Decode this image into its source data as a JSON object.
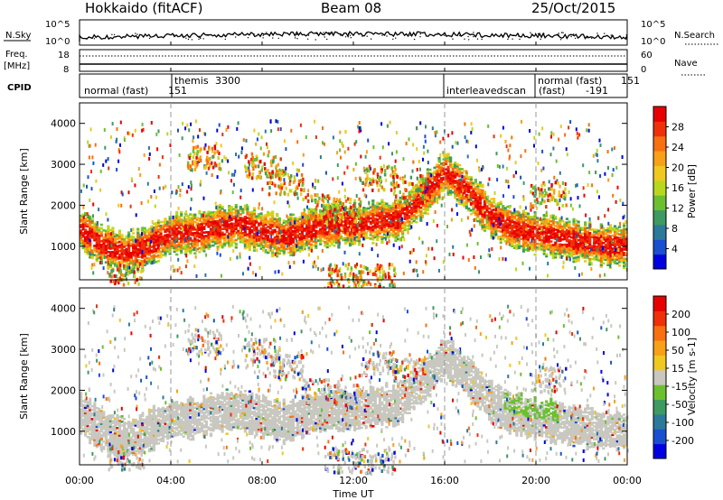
{
  "header": {
    "station": "Hokkaido (fitACF)",
    "beam": "Beam 08",
    "date": "25/Oct/2015"
  },
  "noise_panel": {
    "left_label": "N.Sky",
    "right_label": "N.Search",
    "left_ticks": [
      "10^5",
      "10^0"
    ],
    "right_ticks": [
      "10^5",
      "10^0"
    ]
  },
  "freq_panel": {
    "left_label_top": "Freq.",
    "left_label_unit": "[MHz]",
    "right_label": "Nave",
    "left_ticks": [
      "18",
      "8"
    ],
    "right_ticks": [
      "60",
      "0"
    ]
  },
  "cpid": {
    "label": "CPID",
    "segments": [
      {
        "name": "normal (fast)",
        "id": "151"
      },
      {
        "name": "themis",
        "id": "3300"
      },
      {
        "name": "interleavedscan",
        "id": ""
      },
      {
        "name": "normal (fast)",
        "id": "151"
      },
      {
        "name": "(fast)",
        "id": "-191"
      }
    ]
  },
  "x_axis": {
    "title": "Time UT",
    "ticks": [
      "00:00",
      "04:00",
      "08:00",
      "12:00",
      "16:00",
      "20:00",
      "00:00"
    ]
  },
  "y_axis": {
    "title": "Slant Range [km]",
    "ticks": [
      "1000",
      "2000",
      "3000",
      "4000"
    ]
  },
  "power_colorbar": {
    "title": "Power [dB]",
    "ticks": [
      "4",
      "8",
      "12",
      "16",
      "20",
      "24",
      "28"
    ],
    "colors": [
      "#0000e0",
      "#1a4fd0",
      "#2c7a9a",
      "#3d9a60",
      "#6cc030",
      "#b8d820",
      "#f0c820",
      "#f8a018",
      "#f87010",
      "#f03008",
      "#e80000"
    ]
  },
  "velocity_colorbar": {
    "title": "Velocity [m s-1]",
    "ticks": [
      "200",
      "100",
      "50",
      "15",
      "-15",
      "-50",
      "-100",
      "-200"
    ],
    "colors": [
      "#0000e0",
      "#1a4fd0",
      "#2c7a9a",
      "#3d9a60",
      "#6cc030",
      "#c8c8c0",
      "#f0c820",
      "#f8a018",
      "#f87010",
      "#f03008",
      "#e80000"
    ]
  },
  "chart_data": {
    "type": "heatmap",
    "title": "Hokkaido (fitACF) Beam 08 25/Oct/2015",
    "xlabel": "Time UT",
    "ylabel": "Slant Range [km]",
    "xlim": [
      "00:00",
      "24:00"
    ],
    "ylim": [
      180,
      4500
    ],
    "grid": false,
    "panels": [
      {
        "name": "Power",
        "unit": "dB",
        "clim": [
          0,
          30
        ],
        "band_center_km": [
          {
            "t": 0,
            "range": 1400
          },
          {
            "t": 1,
            "range": 1000
          },
          {
            "t": 2,
            "range": 800
          },
          {
            "t": 3,
            "range": 1000
          },
          {
            "t": 4,
            "range": 1300
          },
          {
            "t": 5,
            "range": 1300
          },
          {
            "t": 6,
            "range": 1450
          },
          {
            "t": 7,
            "range": 1500
          },
          {
            "t": 8,
            "range": 1350
          },
          {
            "t": 9,
            "range": 1200
          },
          {
            "t": 10,
            "range": 1400
          },
          {
            "t": 11,
            "range": 1500
          },
          {
            "t": 12,
            "range": 1500
          },
          {
            "t": 13,
            "range": 1600
          },
          {
            "t": 14,
            "range": 1650
          },
          {
            "t": 15,
            "range": 2200
          },
          {
            "t": 16,
            "range": 2800
          },
          {
            "t": 17,
            "range": 2300
          },
          {
            "t": 18,
            "range": 1700
          },
          {
            "t": 19,
            "range": 1400
          },
          {
            "t": 20,
            "range": 1300
          },
          {
            "t": 21,
            "range": 1200
          },
          {
            "t": 22,
            "range": 1100
          },
          {
            "t": 23,
            "range": 1000
          },
          {
            "t": 24,
            "range": 1000
          }
        ]
      },
      {
        "name": "Velocity",
        "unit": "m s-1",
        "clim": [
          -200,
          200
        ],
        "dominant_value": 0
      }
    ],
    "cpid_switch_times_ut": [
      "04:00",
      "16:00",
      "20:00"
    ]
  }
}
